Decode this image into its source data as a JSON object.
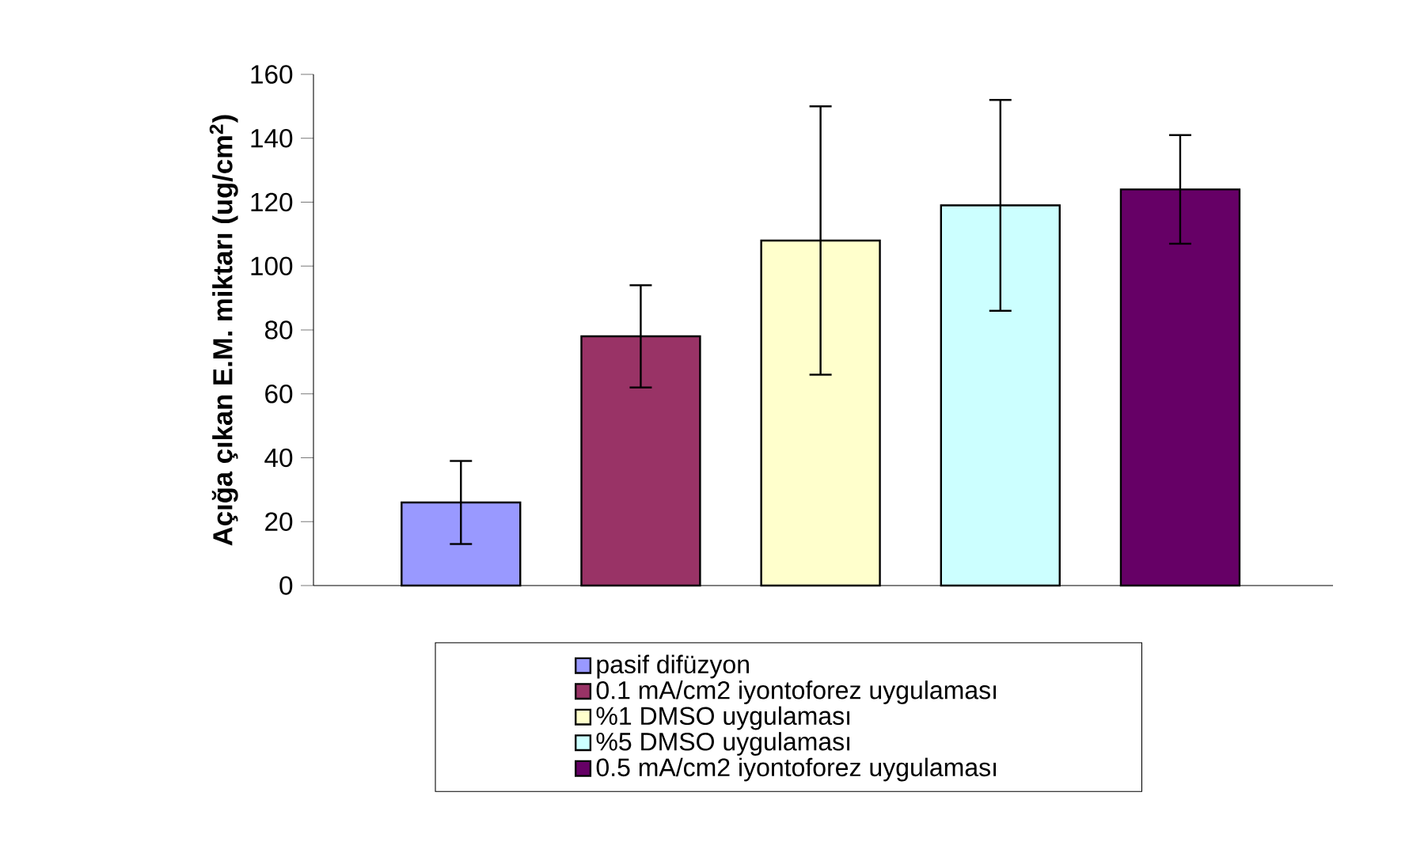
{
  "chart_data": {
    "type": "bar",
    "ylabel": "Açığa çıkan E.M. miktarı (ug/cm$^{2}$)",
    "categories": [
      null,
      null,
      null,
      null,
      null
    ],
    "series": [
      {
        "name": "pasif difüzyon",
        "color": "#9999ff",
        "values": [
          26,
          null,
          null,
          null,
          null
        ],
        "errors": [
          13,
          null,
          null,
          null,
          null
        ]
      },
      {
        "name": "0.1 mA/cm2 iyontoforez uygulaması",
        "color": "#993366",
        "values": [
          null,
          78,
          null,
          null,
          null
        ],
        "errors": [
          null,
          16,
          null,
          null,
          null
        ]
      },
      {
        "name": "%1 DMSO uygulaması",
        "color": "#ffffcc",
        "values": [
          null,
          null,
          108,
          null,
          null
        ],
        "errors": [
          null,
          null,
          42,
          null,
          null
        ]
      },
      {
        "name": "%5 DMSO uygulaması",
        "color": "#ccffff",
        "values": [
          null,
          null,
          null,
          119,
          null
        ],
        "errors": [
          null,
          null,
          null,
          33,
          null
        ]
      },
      {
        "name": "0.5 mA/cm2 iyontoforez uygulaması",
        "color": "#660066",
        "values": [
          null,
          null,
          null,
          null,
          124
        ],
        "errors": [
          null,
          null,
          null,
          null,
          17
        ]
      }
    ],
    "ylim": [
      0,
      160
    ],
    "yticks": [
      0,
      20,
      40,
      60,
      80,
      100,
      120,
      140,
      160
    ],
    "legend": "bottom",
    "grid": false
  }
}
